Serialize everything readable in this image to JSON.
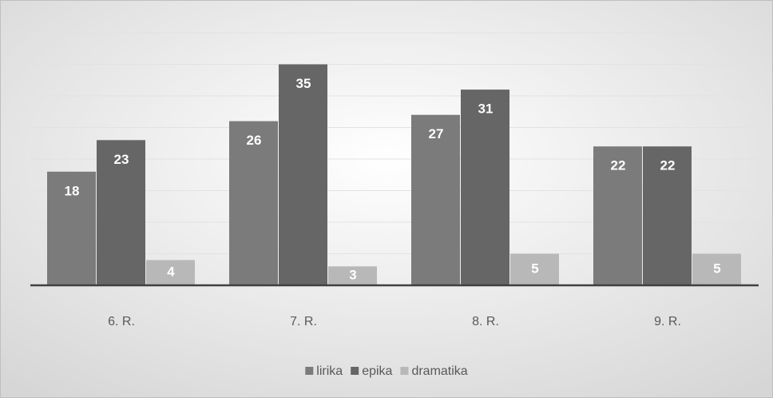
{
  "chart_data": {
    "type": "bar",
    "categories": [
      "6. R.",
      "7. R.",
      "8. R.",
      "9. R."
    ],
    "series": [
      {
        "name": "lirika",
        "color": "#7b7b7b",
        "values": [
          18,
          26,
          27,
          22
        ]
      },
      {
        "name": "epika",
        "color": "#666666",
        "values": [
          23,
          35,
          31,
          22
        ]
      },
      {
        "name": "dramatika",
        "color": "#b8b8b8",
        "values": [
          4,
          3,
          5,
          5
        ]
      }
    ],
    "ylim": [
      0,
      40
    ],
    "yticks": [
      0,
      5,
      10,
      15,
      20,
      25,
      30,
      35,
      40
    ],
    "grid": true,
    "legend": "bottom"
  }
}
